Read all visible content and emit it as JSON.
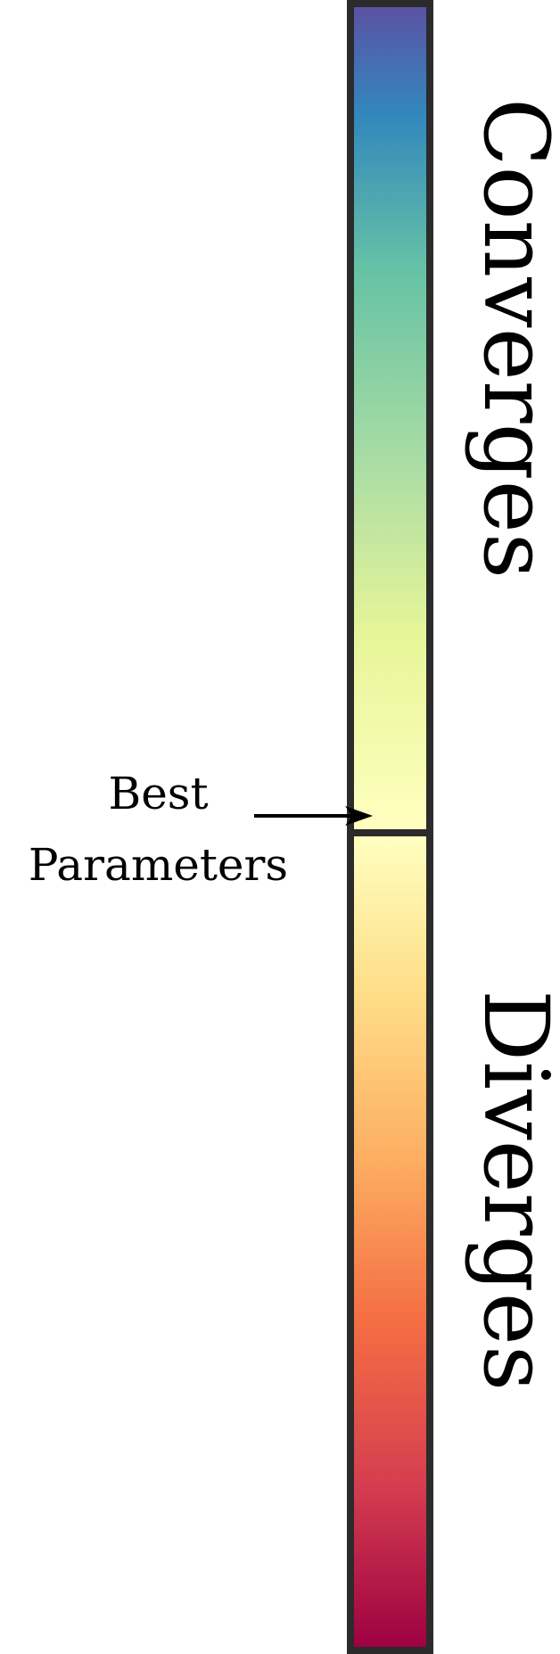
{
  "top_segment": {
    "label": "Converges",
    "gradient": [
      "#5b52a3",
      "#3287bd",
      "#66c2a5",
      "#abdda4",
      "#e6f598",
      "#ffffbf"
    ]
  },
  "bottom_segment": {
    "label": "Diverges",
    "gradient": [
      "#ffffbf",
      "#fee08b",
      "#fdae61",
      "#f46d43",
      "#d53e4f",
      "#9e0142"
    ]
  },
  "marker": {
    "line1": "Best",
    "line2": "Parameters"
  }
}
